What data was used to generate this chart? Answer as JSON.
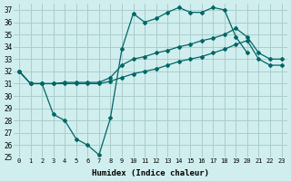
{
  "background_color": "#d0eeee",
  "grid_color": "#aacccc",
  "line_color": "#006666",
  "xlabel": "Humidex (Indice chaleur)",
  "ylim": [
    25,
    37.5
  ],
  "xlim": [
    -0.5,
    23.5
  ],
  "yticks": [
    25,
    26,
    27,
    28,
    29,
    30,
    31,
    32,
    33,
    34,
    35,
    36,
    37
  ],
  "xticks": [
    0,
    1,
    2,
    3,
    4,
    5,
    6,
    7,
    8,
    9,
    10,
    11,
    12,
    13,
    14,
    15,
    16,
    17,
    18,
    19,
    20,
    21,
    22,
    23
  ],
  "line1_x": [
    0,
    1,
    2,
    3,
    4,
    5,
    6,
    7,
    8,
    9,
    10,
    11,
    12,
    13,
    14,
    15,
    16,
    17,
    18,
    19,
    20,
    21,
    22,
    23
  ],
  "line1_y": [
    32.0,
    31.0,
    31.0,
    28.5,
    28.0,
    26.5,
    26.0,
    25.2,
    28.2,
    33.8,
    36.7,
    36.0,
    36.3,
    36.8,
    37.2,
    36.8,
    36.8,
    37.2,
    37.0,
    34.8,
    33.5,
    null,
    null,
    null
  ],
  "line2_x": [
    0,
    1,
    2,
    3,
    4,
    5,
    6,
    7,
    8,
    9,
    10,
    11,
    12,
    13,
    14,
    15,
    16,
    17,
    18,
    19,
    20,
    21,
    22,
    23
  ],
  "line2_y": [
    32.0,
    31.0,
    31.0,
    31.0,
    31.1,
    31.1,
    31.1,
    31.1,
    31.5,
    32.5,
    33.0,
    33.2,
    33.5,
    33.7,
    34.0,
    34.2,
    34.5,
    34.7,
    35.0,
    35.5,
    34.8,
    33.5,
    33.0,
    33.0
  ],
  "line3_x": [
    0,
    1,
    2,
    3,
    4,
    5,
    6,
    7,
    8,
    9,
    10,
    11,
    12,
    13,
    14,
    15,
    16,
    17,
    18,
    19,
    20,
    21,
    22,
    23
  ],
  "line3_y": [
    32.0,
    31.0,
    31.0,
    31.0,
    31.0,
    31.0,
    31.0,
    31.0,
    31.2,
    31.5,
    31.8,
    32.0,
    32.2,
    32.5,
    32.8,
    33.0,
    33.2,
    33.5,
    33.8,
    34.2,
    34.5,
    33.0,
    32.5,
    32.5
  ]
}
